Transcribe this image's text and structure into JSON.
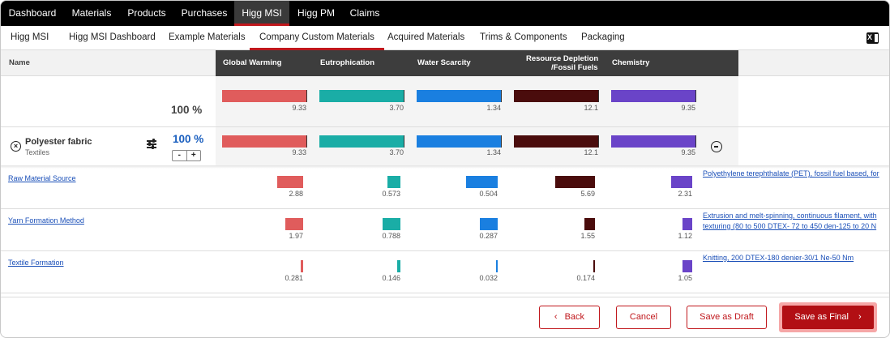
{
  "topnav": [
    "Dashboard",
    "Materials",
    "Products",
    "Purchases",
    "Higg MSI",
    "Higg PM",
    "Claims"
  ],
  "subnav": [
    "Higg MSI",
    "Higg MSI Dashboard",
    "Example Materials",
    "Company Custom Materials",
    "Acquired Materials",
    "Trims & Components",
    "Packaging"
  ],
  "header": {
    "name": "Name",
    "cols": [
      "Global Warming",
      "Eutrophication",
      "Water Scarcity",
      "Resource Depletion",
      "/Fossil Fuels",
      "Chemistry"
    ]
  },
  "colors": {
    "global_warming": "#e05c5c",
    "eutrophication": "#1aada6",
    "water_scarcity": "#1a7fe0",
    "resource_depletion": "#4a0c0c",
    "chemistry": "#6a44c8",
    "accent": "#c0171c"
  },
  "total": {
    "pct": "100 %",
    "values": [
      "9.33",
      "3.70",
      "1.34",
      "12.1",
      "9.35"
    ]
  },
  "material": {
    "name": "Polyester fabric",
    "category": "Textiles",
    "pct": "100 %",
    "values": [
      "9.33",
      "3.70",
      "1.34",
      "12.1",
      "9.35"
    ],
    "stepper_minus": "-",
    "stepper_plus": "+"
  },
  "details": [
    {
      "label": "Raw Material Source",
      "values": [
        "2.88",
        "0.573",
        "0.504",
        "5.69",
        "2.31"
      ],
      "fraction": [
        0.309,
        0.155,
        0.376,
        0.47,
        0.247
      ],
      "link_lines": [
        "Polyethylene terephthalate (PET), fossil fuel based, for"
      ]
    },
    {
      "label": "Yarn Formation Method",
      "values": [
        "1.97",
        "0.788",
        "0.287",
        "1.55",
        "1.12"
      ],
      "fraction": [
        0.211,
        0.213,
        0.214,
        0.128,
        0.12
      ],
      "link_lines": [
        "Extrusion and melt-spinning, continuous filament, with",
        "texturing (80 to 500 DTEX- 72 to 450 den-125 to 20 N"
      ]
    },
    {
      "label": "Textile Formation",
      "values": [
        "0.281",
        "0.146",
        "0.032",
        "0.174",
        "1.05"
      ],
      "fraction": [
        0.03,
        0.039,
        0.024,
        0.014,
        0.112
      ],
      "link_lines": [
        "Knitting, 200 DTEX-180 denier-30/1 Ne-50 Nm"
      ]
    }
  ],
  "footer": {
    "back": "Back",
    "cancel": "Cancel",
    "draft": "Save as Draft",
    "final": "Save as Final"
  }
}
